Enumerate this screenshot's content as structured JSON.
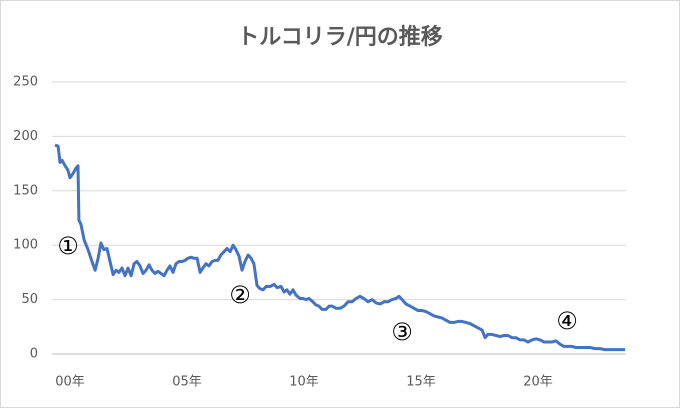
{
  "chart_data": {
    "type": "line",
    "title": "トルコリラ/円の推移",
    "x": [
      1999.36,
      1999.49,
      1999.57,
      1999.66,
      1999.79,
      1999.91,
      2000.0,
      2000.13,
      2000.26,
      2000.34,
      2000.38,
      2000.47,
      2000.6,
      2000.77,
      2000.94,
      2001.07,
      2001.2,
      2001.32,
      2001.45,
      2001.58,
      2001.71,
      2001.84,
      2001.97,
      2002.09,
      2002.22,
      2002.35,
      2002.48,
      2002.61,
      2002.74,
      2002.86,
      2002.99,
      2003.12,
      2003.25,
      2003.38,
      2003.5,
      2003.63,
      2003.76,
      2003.89,
      2004.02,
      2004.15,
      2004.27,
      2004.4,
      2004.53,
      2004.66,
      2004.79,
      2004.91,
      2005.04,
      2005.17,
      2005.3,
      2005.43,
      2005.56,
      2005.68,
      2005.81,
      2005.94,
      2006.07,
      2006.2,
      2006.32,
      2006.45,
      2006.58,
      2006.71,
      2006.84,
      2006.97,
      2007.09,
      2007.22,
      2007.35,
      2007.48,
      2007.61,
      2007.74,
      2007.86,
      2007.99,
      2008.12,
      2008.25,
      2008.38,
      2008.55,
      2008.72,
      2008.85,
      2009.02,
      2009.15,
      2009.27,
      2009.4,
      2009.53,
      2009.66,
      2009.83,
      2009.96,
      2010.09,
      2010.21,
      2010.38,
      2010.51,
      2010.64,
      2010.77,
      2010.94,
      2011.07,
      2011.2,
      2011.37,
      2011.54,
      2011.71,
      2011.88,
      2012.05,
      2012.22,
      2012.39,
      2012.56,
      2012.74,
      2012.91,
      2013.08,
      2013.25,
      2013.42,
      2013.59,
      2013.76,
      2013.93,
      2014.06,
      2014.19,
      2014.36,
      2014.53,
      2014.7,
      2014.87,
      2015.04,
      2015.21,
      2015.38,
      2015.56,
      2015.73,
      2015.9,
      2016.07,
      2016.24,
      2016.41,
      2016.58,
      2016.75,
      2016.92,
      2017.09,
      2017.26,
      2017.44,
      2017.61,
      2017.74,
      2017.86,
      2018.03,
      2018.21,
      2018.38,
      2018.55,
      2018.72,
      2018.89,
      2019.06,
      2019.23,
      2019.4,
      2019.57,
      2019.74,
      2019.92,
      2020.09,
      2020.26,
      2020.43,
      2020.6,
      2020.77,
      2020.94,
      2021.11,
      2021.28,
      2021.45,
      2021.62,
      2021.79,
      2022.01,
      2022.22,
      2022.44,
      2022.65,
      2022.86,
      2023.08,
      2023.29,
      2023.5,
      2023.72
    ],
    "series": [
      {
        "color": "#4472c4",
        "values": [
          192,
          191,
          176,
          178,
          173,
          169,
          162,
          166,
          171,
          173,
          123,
          119,
          105,
          96,
          85,
          77,
          88,
          102,
          96,
          97,
          85,
          73,
          77,
          75,
          79,
          72,
          79,
          72,
          83,
          85,
          81,
          74,
          77,
          82,
          77,
          74,
          76,
          74,
          72,
          77,
          81,
          75,
          83,
          85,
          85,
          86,
          88,
          89,
          88,
          88,
          75,
          79,
          83,
          81,
          85,
          86,
          86,
          91,
          94,
          97,
          94,
          100,
          96,
          90,
          77,
          85,
          91,
          88,
          83,
          63,
          60,
          59,
          62,
          62,
          64,
          61,
          62,
          57,
          59,
          55,
          59,
          54,
          51,
          51,
          50,
          51,
          48,
          45,
          44,
          41,
          41,
          44,
          44,
          42,
          42,
          44,
          48,
          48,
          51,
          53,
          51,
          48,
          50,
          47,
          46,
          48,
          48,
          50,
          51,
          53,
          50,
          46,
          44,
          42,
          40,
          40,
          39,
          37,
          35,
          34,
          33,
          31,
          29,
          29,
          30,
          30,
          29,
          28,
          26,
          24,
          22,
          15,
          18,
          18,
          17,
          16,
          17,
          17,
          15,
          15,
          13,
          13,
          11,
          13,
          14,
          13,
          11,
          11,
          11,
          12,
          9,
          7,
          7,
          7,
          6,
          6,
          6,
          6,
          5,
          5,
          4,
          4,
          4,
          4,
          4
        ]
      }
    ],
    "xlim": [
      1999.23,
      2023.76
    ],
    "xticks": [
      {
        "value": 2000,
        "label": "00年"
      },
      {
        "value": 2005,
        "label": "05年"
      },
      {
        "value": 2010,
        "label": "10年"
      },
      {
        "value": 2015,
        "label": "15年"
      },
      {
        "value": 2020,
        "label": "20年"
      }
    ],
    "ylim": [
      0,
      250
    ],
    "yticks": [
      0,
      50,
      100,
      150,
      200,
      250
    ],
    "grid": true,
    "annotations": [
      "①",
      "②",
      "③",
      "④"
    ]
  }
}
